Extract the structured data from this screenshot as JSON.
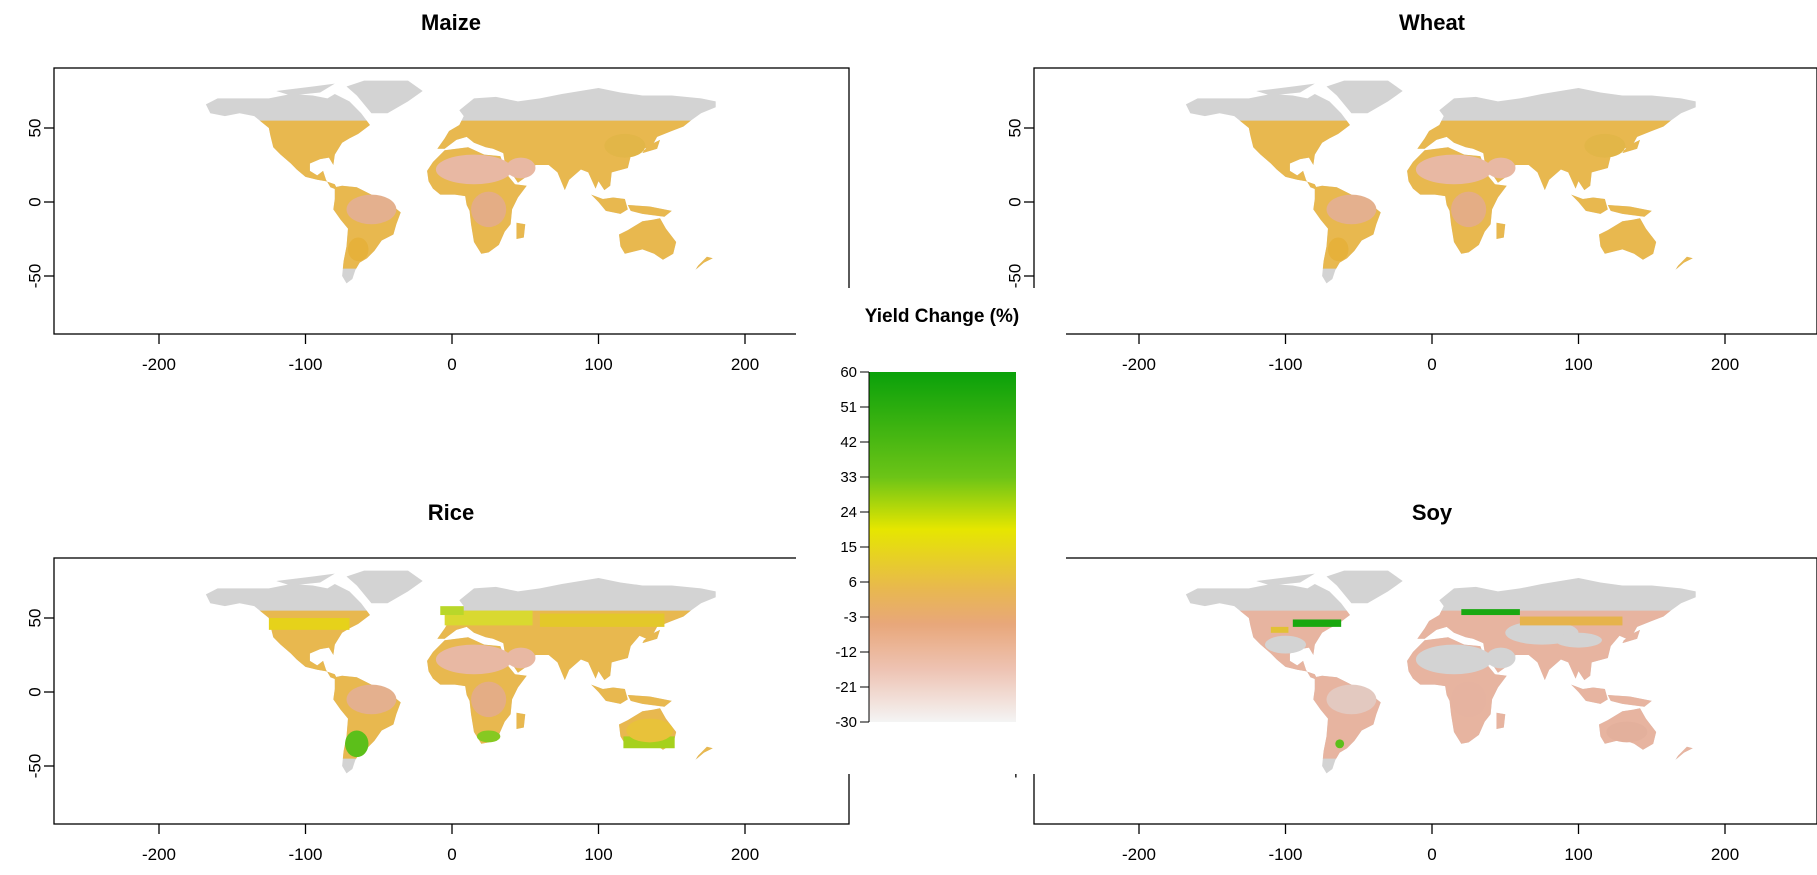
{
  "panels": [
    {
      "key": "maize",
      "title": "Maize",
      "pattern": "uniform"
    },
    {
      "key": "wheat",
      "title": "Wheat",
      "pattern": "uniform"
    },
    {
      "key": "rice",
      "title": "Rice",
      "pattern": "rice"
    },
    {
      "key": "soy",
      "title": "Soy",
      "pattern": "soy"
    }
  ],
  "axes": {
    "x_ticks": [
      "-200",
      "-100",
      "0",
      "100",
      "200"
    ],
    "y_ticks": [
      "50",
      "0",
      "-50"
    ]
  },
  "legend": {
    "title": "Yield Change (%)",
    "ticks": [
      "60",
      "51",
      "42",
      "33",
      "24",
      "15",
      "6",
      "-3",
      "-12",
      "-21",
      "-30"
    ],
    "range": [
      -30,
      60
    ],
    "colors": {
      "max": "#0aa10a",
      "high": "#48b80f",
      "mid_high": "#e6e600",
      "mid": "#e8b84f",
      "low": "#e8a77a",
      "min": "#f2f2f2",
      "no_data": "#d3d3d3"
    }
  }
}
